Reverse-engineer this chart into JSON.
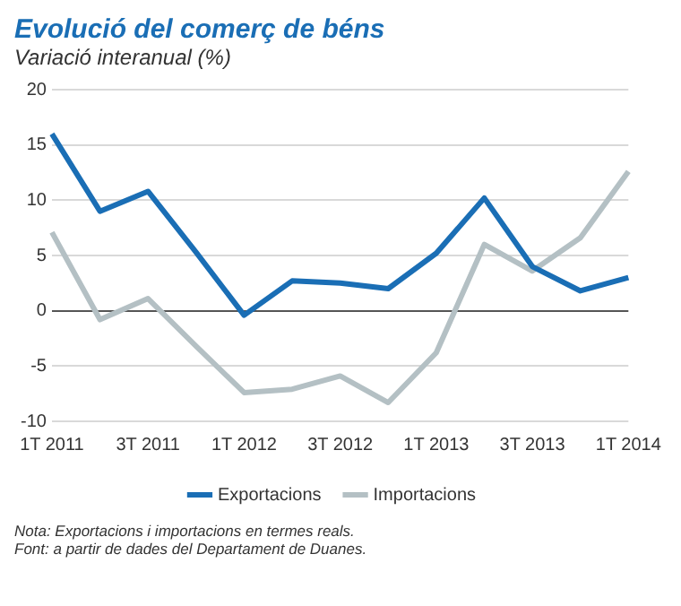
{
  "chart_data": {
    "type": "line",
    "title": "Evolució del comerç de béns",
    "subtitle": "Variació interanual (%)",
    "categories": [
      "1T 2011",
      null,
      "3T 2011",
      null,
      "1T 2012",
      null,
      "3T 2012",
      null,
      "1T 2013",
      null,
      "3T 2013",
      null,
      "1T 2014"
    ],
    "series": [
      {
        "name": "Exportacions",
        "color": "#1a6eb5",
        "values": [
          16,
          9,
          10.8,
          5.3,
          -0.4,
          2.7,
          2.5,
          2.0,
          5.2,
          10.2,
          4.0,
          1.8,
          3.0
        ]
      },
      {
        "name": "Importacions",
        "color": "#b4c0c4",
        "values": [
          7.1,
          -0.8,
          1.1,
          -3.2,
          -7.4,
          -7.1,
          -5.9,
          -8.3,
          -3.8,
          6.0,
          3.6,
          6.6,
          12.6
        ]
      }
    ],
    "ylim": [
      -10,
      20
    ],
    "yticks": [
      -10,
      -5,
      0,
      5,
      10,
      15,
      20
    ],
    "grid": "y",
    "legend": "bottom",
    "marker": "none",
    "line_style": "solid",
    "annotations": [
      "Nota: Exportacions i importacions en termes reals.",
      "Font: a partir de dades del Departament de Duanes."
    ]
  }
}
